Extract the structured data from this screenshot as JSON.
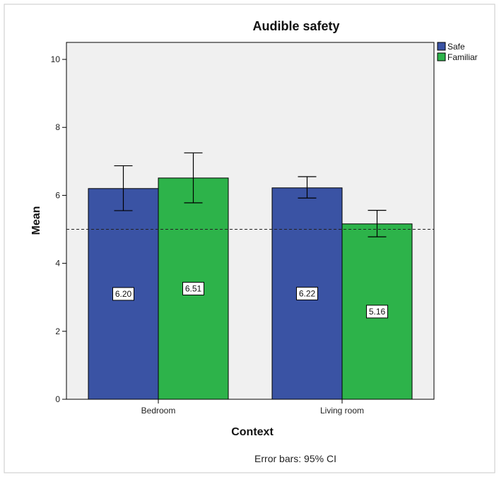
{
  "chart_data": {
    "type": "bar",
    "title": "Audible safety",
    "xlabel": "Context",
    "ylabel": "Mean",
    "categories": [
      "Bedroom",
      "Living room"
    ],
    "series": [
      {
        "name": "Safe",
        "color": "#3a53a4",
        "values": [
          6.2,
          6.22
        ],
        "ci_lower": [
          5.55,
          5.92
        ],
        "ci_upper": [
          6.87,
          6.55
        ],
        "value_labels": [
          "6.20",
          "6.22"
        ]
      },
      {
        "name": "Familiar",
        "color": "#2db34a",
        "values": [
          6.51,
          5.16
        ],
        "ci_lower": [
          5.78,
          4.78
        ],
        "ci_upper": [
          7.25,
          5.56
        ],
        "value_labels": [
          "6.51",
          "5.16"
        ]
      }
    ],
    "ylim": [
      0,
      10.5
    ],
    "yticks": [
      "0",
      "2",
      "4",
      "6",
      "8",
      "10"
    ],
    "reference_line": 5,
    "grid": false,
    "legend_position": "top-right",
    "plot_background": "#f0f0f0",
    "note": "Error bars: 95% CI"
  }
}
